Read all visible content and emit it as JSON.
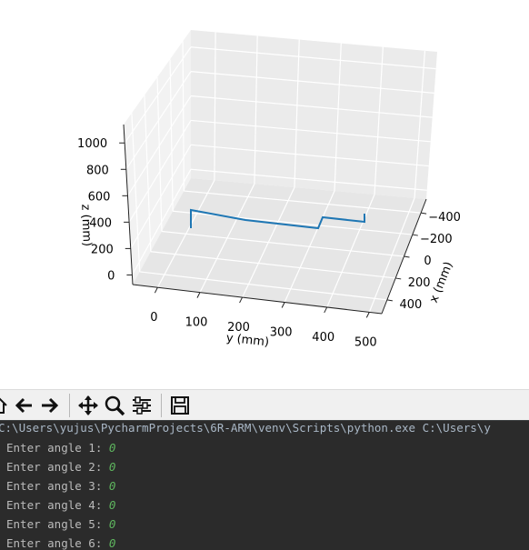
{
  "chart_data": {
    "type": "line3d",
    "title": "",
    "xlabel": "x (mm)",
    "ylabel": "y (mm)",
    "zlabel": "z (mm)",
    "x_ticks": [
      "−400",
      "−200",
      "0",
      "200",
      "400"
    ],
    "y_ticks": [
      "0",
      "100",
      "200",
      "300",
      "400",
      "500"
    ],
    "z_ticks": [
      "0",
      "200",
      "400",
      "600",
      "800",
      "1000"
    ],
    "grid": true,
    "series": [
      {
        "color": "#1f77b4"
      }
    ]
  },
  "toolbar": {
    "items": [
      {
        "icon": "home-icon"
      },
      {
        "icon": "back-arrow-icon"
      },
      {
        "icon": "forward-arrow-icon"
      },
      {
        "icon": "pan-icon"
      },
      {
        "icon": "zoom-icon"
      },
      {
        "icon": "configure-subplots-icon"
      },
      {
        "icon": "save-icon"
      }
    ]
  },
  "console": {
    "command": "C:\\Users\\yujus\\PycharmProjects\\6R-ARM\\venv\\Scripts\\python.exe C:\\Users\\y",
    "prompts": [
      {
        "text": "Enter angle 1: ",
        "value": "0"
      },
      {
        "text": "Enter angle 2: ",
        "value": "0"
      },
      {
        "text": "Enter angle 3: ",
        "value": "0"
      },
      {
        "text": "Enter angle 4: ",
        "value": "0"
      },
      {
        "text": "Enter angle 5: ",
        "value": "0"
      },
      {
        "text": "Enter angle 6: ",
        "value": "0"
      }
    ]
  }
}
